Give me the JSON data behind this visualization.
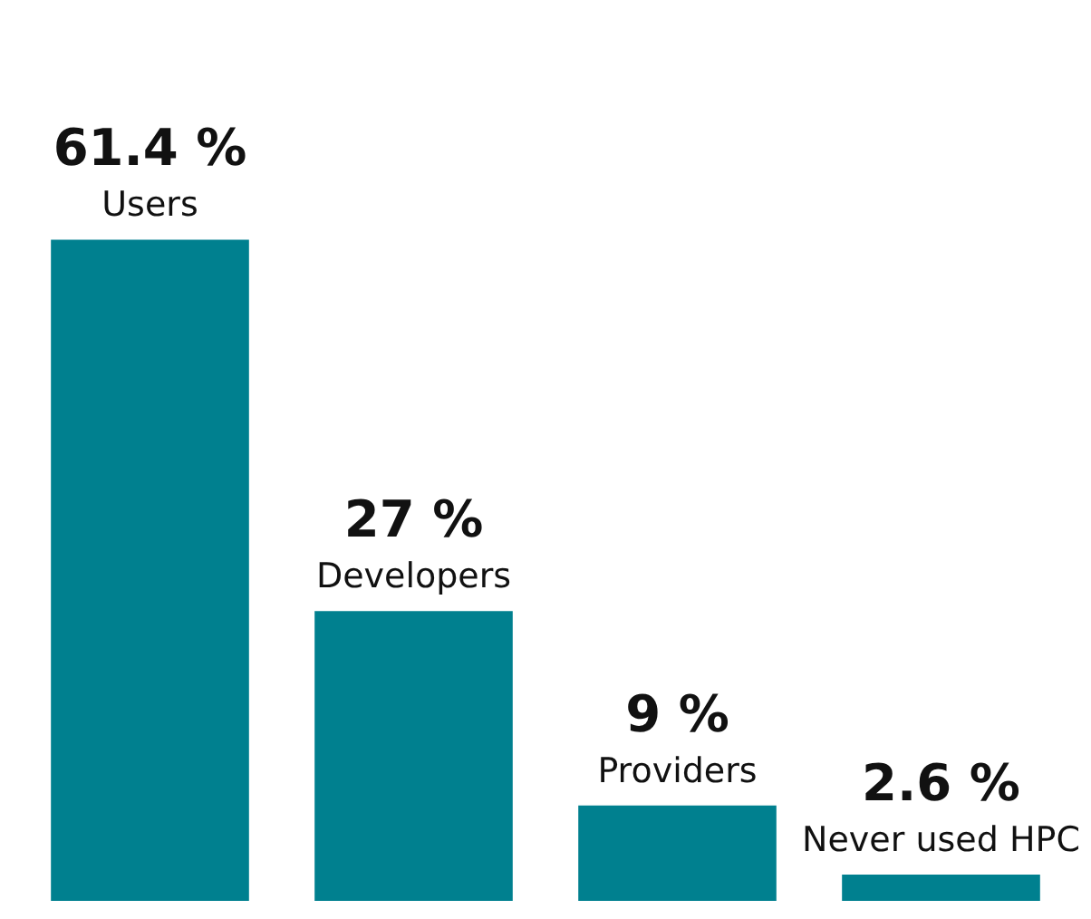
{
  "chart_data": {
    "type": "bar",
    "categories": [
      "Users",
      "Developers",
      "Providers",
      "Never used HPC"
    ],
    "values": [
      61.4,
      27,
      9,
      2.6
    ],
    "value_labels": [
      "61.4 %",
      "27 %",
      "9 %",
      "2.6 %"
    ],
    "color": "#00808f",
    "legend": false
  }
}
